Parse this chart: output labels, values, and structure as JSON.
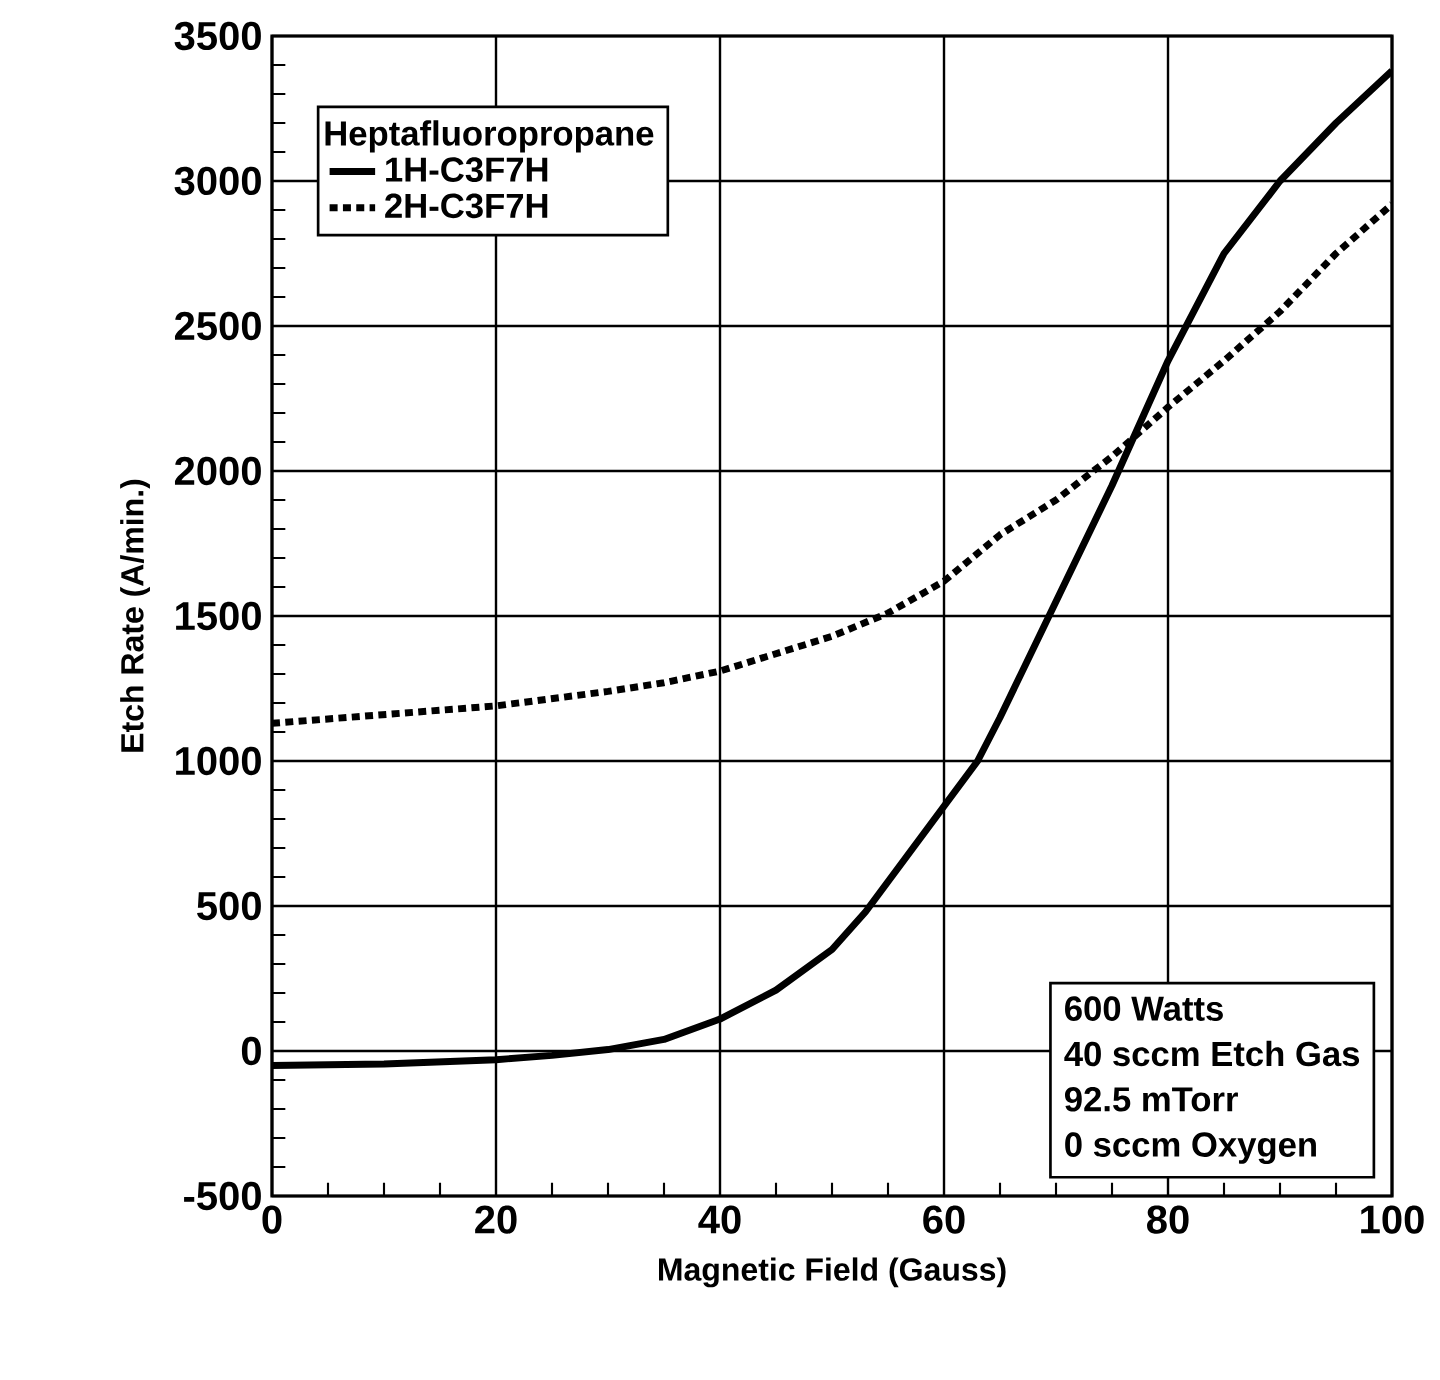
{
  "chart_data": {
    "type": "line",
    "xlabel": "Magnetic Field (Gauss)",
    "ylabel": "Etch Rate (A/min.)",
    "legend_title": "Heptafluoropropane",
    "xlim": [
      0,
      100
    ],
    "xticks": [
      0,
      20,
      40,
      60,
      80,
      100
    ],
    "ylim": [
      -500,
      3500
    ],
    "yticks": [
      -500,
      0,
      500,
      1000,
      1500,
      2000,
      2500,
      3000,
      3500
    ],
    "grid": true,
    "legend": "top left",
    "marker": "none",
    "series": [
      {
        "name": "1H-C3F7H",
        "color": "#000000",
        "line_style": "solid",
        "x": [
          0,
          10,
          20,
          25,
          30,
          35,
          40,
          45,
          50,
          53,
          63,
          65,
          70,
          75,
          80,
          85,
          90,
          95,
          100
        ],
        "values": [
          -50,
          -45,
          -30,
          -15,
          5,
          40,
          110,
          210,
          350,
          480,
          1000,
          1150,
          1550,
          1950,
          2380,
          2750,
          3000,
          3200,
          3380
        ]
      },
      {
        "name": "2H-C3F7H",
        "color": "#000000",
        "line_style": "dotted",
        "x": [
          0,
          10,
          20,
          30,
          35,
          40,
          45,
          50,
          55,
          60,
          65,
          70,
          75,
          80,
          85,
          90,
          95,
          100
        ],
        "values": [
          1130,
          1160,
          1190,
          1240,
          1270,
          1310,
          1370,
          1430,
          1510,
          1620,
          1780,
          1900,
          2050,
          2220,
          2380,
          2550,
          2750,
          2920
        ]
      }
    ],
    "annotations": [
      "600 Watts",
      "40 sccm Etch Gas",
      "92.5 mTorr",
      "0 sccm Oxygen"
    ]
  }
}
